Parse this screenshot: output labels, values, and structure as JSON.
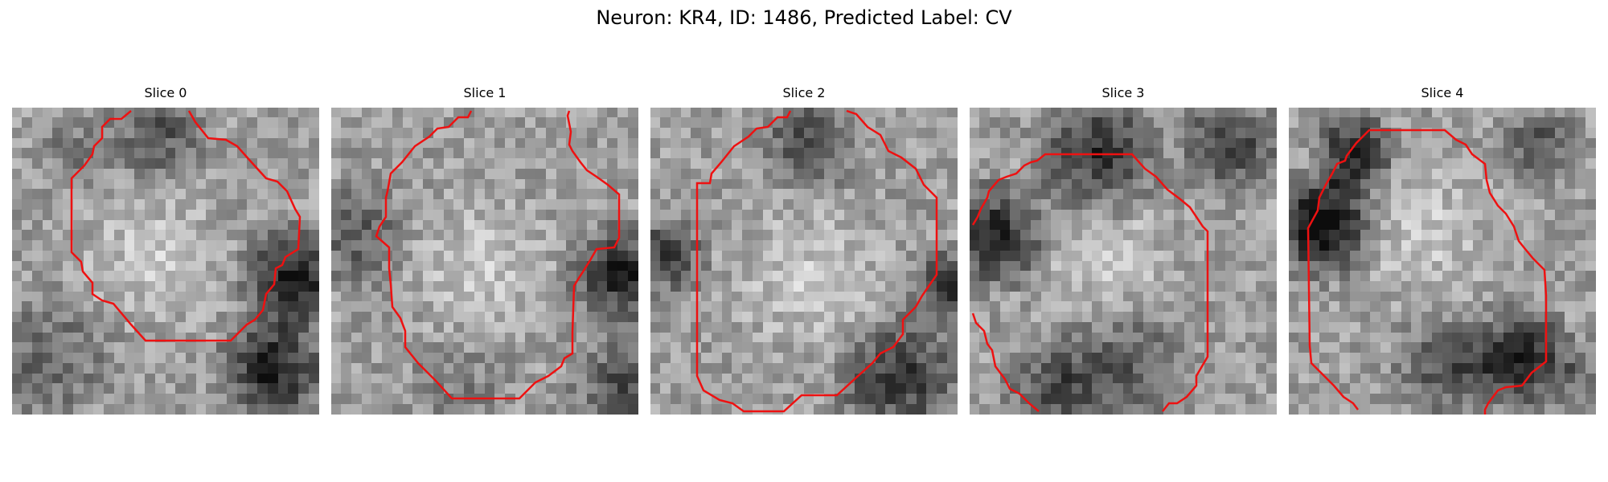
{
  "figure": {
    "title": "Neuron: KR4, ID: 1486, Predicted Label: CV"
  },
  "panels": [
    {
      "title": "Slice 0"
    },
    {
      "title": "Slice 1"
    },
    {
      "title": "Slice 2"
    },
    {
      "title": "Slice 3"
    },
    {
      "title": "Slice 4"
    }
  ],
  "colors": {
    "contour": "#ee1111",
    "colormap": "grayscale"
  }
}
